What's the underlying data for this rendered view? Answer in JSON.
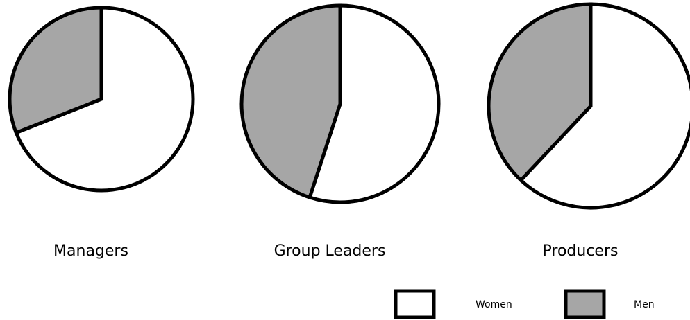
{
  "chart_data": [
    {
      "type": "pie",
      "title": "Managers",
      "categories": [
        "Women",
        "Men"
      ],
      "values": [
        69,
        31
      ],
      "colors": [
        "#ffffff",
        "#a6a6a6"
      ]
    },
    {
      "type": "pie",
      "title": "Group Leaders",
      "categories": [
        "Women",
        "Men"
      ],
      "values": [
        55,
        45
      ],
      "colors": [
        "#ffffff",
        "#a6a6a6"
      ]
    },
    {
      "type": "pie",
      "title": "Producers",
      "categories": [
        "Women",
        "Men"
      ],
      "values": [
        62,
        38
      ],
      "colors": [
        "#ffffff",
        "#a6a6a6"
      ]
    }
  ]
}
